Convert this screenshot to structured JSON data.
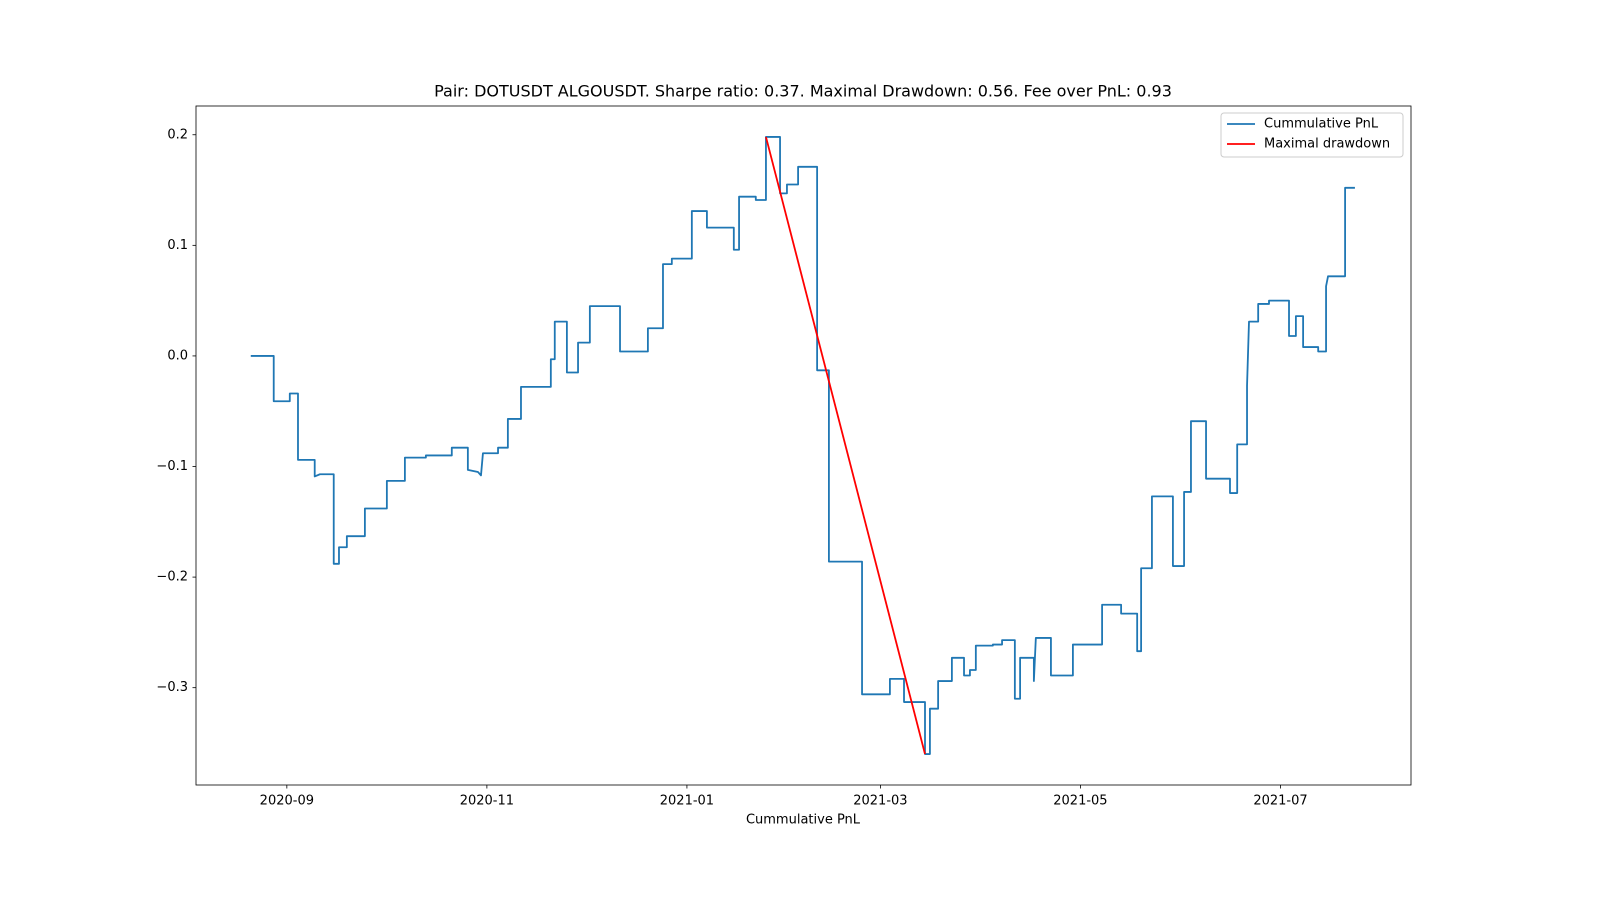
{
  "chart_data": {
    "type": "line",
    "title": "Pair: DOTUSDT ALGOUSDT. Sharpe ratio: 0.37. Maximal Drawdown: 0.56. Fee over PnL: 0.93",
    "xlabel": "Cummulative PnL",
    "legend": "upper right",
    "grid": false,
    "xlim": [
      18478.3,
      18848.8
    ],
    "xticks": [
      {
        "value": 18506,
        "label": "2020-09"
      },
      {
        "value": 18567,
        "label": "2020-11"
      },
      {
        "value": 18628,
        "label": "2021-01"
      },
      {
        "value": 18687,
        "label": "2021-03"
      },
      {
        "value": 18748,
        "label": "2021-05"
      },
      {
        "value": 18809,
        "label": "2021-07"
      }
    ],
    "ylim": [
      -0.388,
      0.226
    ],
    "yticks": [
      {
        "value": -0.3,
        "label": "−0.3"
      },
      {
        "value": -0.2,
        "label": "−0.2"
      },
      {
        "value": -0.1,
        "label": "−0.1"
      },
      {
        "value": 0,
        "label": "0.0"
      },
      0.1,
      0.2
    ],
    "series": [
      {
        "name": "Cummulative PnL",
        "color": "#1f77b4",
        "x": [
          18495.0,
          18502.0,
          18502.0,
          18506.9,
          18506.9,
          18509.4,
          18509.4,
          18514.5,
          18514.5,
          18516.1,
          18520.3,
          18520.3,
          18521.9,
          18521.9,
          18524.3,
          18524.3,
          18529.8,
          18529.8,
          18536.5,
          18536.5,
          18542.0,
          18542.0,
          18548.4,
          18548.4,
          18556.3,
          18556.3,
          18561.2,
          18561.2,
          18564.3,
          18565.2,
          18565.8,
          18570.4,
          18570.4,
          18573.4,
          18573.4,
          18577.4,
          18577.4,
          18586.5,
          18586.5,
          18587.7,
          18587.7,
          18591.4,
          18591.4,
          18594.8,
          18594.8,
          18598.4,
          18598.4,
          18607.6,
          18607.6,
          18616.1,
          18616.1,
          18620.7,
          18620.7,
          18623.4,
          18623.4,
          18629.5,
          18629.5,
          18634.1,
          18634.1,
          18642.3,
          18642.3,
          18643.9,
          18643.9,
          18649.0,
          18649.0,
          18652.1,
          18652.1,
          18656.4,
          18656.4,
          18658.5,
          18658.5,
          18661.9,
          18661.9,
          18667.7,
          18667.7,
          18671.3,
          18671.3,
          18681.4,
          18681.4,
          18689.9,
          18689.9,
          18694.2,
          18694.2,
          18700.6,
          18700.6,
          18702.1,
          18702.1,
          18704.6,
          18704.6,
          18708.8,
          18708.8,
          18712.5,
          18712.5,
          18714.3,
          18714.3,
          18716.1,
          18716.1,
          18721.3,
          18721.3,
          18724.1,
          18724.1,
          18728.0,
          18728.0,
          18729.6,
          18729.6,
          18733.8,
          18733.8,
          18734.4,
          18739.0,
          18739.0,
          18745.7,
          18745.7,
          18754.6,
          18754.6,
          18760.4,
          18760.4,
          18765.3,
          18765.3,
          18766.5,
          18766.5,
          18769.8,
          18769.8,
          18776.2,
          18776.2,
          18779.6,
          18779.6,
          18781.7,
          18781.7,
          18786.3,
          18786.3,
          18793.6,
          18793.6,
          18795.8,
          18795.8,
          18798.8,
          18798.8,
          18799.4,
          18802.2,
          18802.2,
          18805.5,
          18805.5,
          18811.6,
          18811.6,
          18813.7,
          18813.7,
          18815.9,
          18815.9,
          18820.5,
          18820.5,
          18822.9,
          18822.9,
          18823.5,
          18828.7,
          18828.7,
          18831.7
        ],
        "values": [
          0,
          0,
          -0.041,
          -0.041,
          -0.034,
          -0.034,
          -0.094,
          -0.094,
          -0.109,
          -0.107,
          -0.107,
          -0.188,
          -0.188,
          -0.173,
          -0.173,
          -0.163,
          -0.163,
          -0.138,
          -0.138,
          -0.113,
          -0.113,
          -0.092,
          -0.092,
          -0.09,
          -0.09,
          -0.083,
          -0.083,
          -0.103,
          -0.105,
          -0.108,
          -0.088,
          -0.088,
          -0.083,
          -0.083,
          -0.057,
          -0.057,
          -0.028,
          -0.028,
          -0.003,
          -0.003,
          0.031,
          0.031,
          -0.015,
          -0.015,
          0.012,
          0.012,
          0.045,
          0.045,
          0.004,
          0.004,
          0.025,
          0.025,
          0.083,
          0.083,
          0.088,
          0.088,
          0.131,
          0.131,
          0.116,
          0.116,
          0.096,
          0.096,
          0.144,
          0.144,
          0.141,
          0.141,
          0.198,
          0.198,
          0.147,
          0.147,
          0.155,
          0.155,
          0.171,
          0.171,
          -0.013,
          -0.013,
          -0.186,
          -0.186,
          -0.306,
          -0.306,
          -0.292,
          -0.292,
          -0.313,
          -0.313,
          -0.36,
          -0.36,
          -0.319,
          -0.319,
          -0.294,
          -0.294,
          -0.273,
          -0.273,
          -0.289,
          -0.289,
          -0.284,
          -0.284,
          -0.262,
          -0.262,
          -0.261,
          -0.261,
          -0.257,
          -0.257,
          -0.31,
          -0.31,
          -0.273,
          -0.273,
          -0.294,
          -0.255,
          -0.255,
          -0.289,
          -0.289,
          -0.261,
          -0.261,
          -0.225,
          -0.225,
          -0.233,
          -0.233,
          -0.267,
          -0.267,
          -0.192,
          -0.192,
          -0.127,
          -0.127,
          -0.19,
          -0.19,
          -0.123,
          -0.123,
          -0.059,
          -0.059,
          -0.111,
          -0.111,
          -0.124,
          -0.124,
          -0.08,
          -0.08,
          -0.027,
          0.031,
          0.031,
          0.047,
          0.047,
          0.05,
          0.05,
          0.018,
          0.018,
          0.036,
          0.036,
          0.008,
          0.008,
          0.004,
          0.004,
          0.063,
          0.072,
          0.072,
          0.152,
          0.152
        ]
      },
      {
        "name": "Maximal drawdown",
        "color": "#ff0000",
        "x": [
          18652.1,
          18700.6
        ],
        "values": [
          0.198,
          -0.36
        ]
      }
    ]
  }
}
